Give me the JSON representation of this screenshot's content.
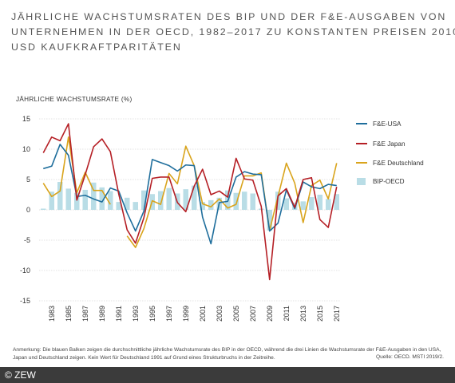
{
  "title_lines": [
    "JÄHRLICHE WACHSTUMSRATEN DES BIP UND DER F&E-AUSGABEN VON",
    "UNTERNEHMEN IN DER OECD, 1982–2017 ZU KONSTANTEN PREISEN 2010,",
    "USD KAUFKRAFTPARITÄTEN"
  ],
  "y_axis_label": "JÄHRLICHE WACHSTUMSRATE (%)",
  "note": "Anmerkung: Die blauen Balken zeigen die durchschnittliche jährliche Wachstumsrate des BIP in der OECD, während die drei Linien die Wachstumsrate der F&E-Ausgaben in den USA, Japan und Deutschland zeigen. Kein Wert für Deutschland 1991 auf Grund eines Strukturbruchs in der Zeitreihe.",
  "source": "Quelle: OECD. MSTI 2019/2.",
  "footer": "© ZEW",
  "colors": {
    "usa": "#1f6e9c",
    "japan": "#b51f25",
    "germany": "#d9a41c",
    "gdp": "#b9dde6",
    "grid": "#c8c8c8"
  },
  "chart_data": {
    "type": "line",
    "x": [
      1982,
      1983,
      1984,
      1985,
      1986,
      1987,
      1988,
      1989,
      1990,
      1991,
      1992,
      1993,
      1994,
      1995,
      1996,
      1997,
      1998,
      1999,
      2000,
      2001,
      2002,
      2003,
      2004,
      2005,
      2006,
      2007,
      2008,
      2009,
      2010,
      2011,
      2012,
      2013,
      2014,
      2015,
      2016,
      2017
    ],
    "x_tick_labels": [
      "1983",
      "1985",
      "1987",
      "1989",
      "1991",
      "1993",
      "1995",
      "1997",
      "1999",
      "2001",
      "2003",
      "2005",
      "2007",
      "2009",
      "2011",
      "2013",
      "2015",
      "2017"
    ],
    "ylim": [
      -15,
      15
    ],
    "y_ticks": [
      15,
      10,
      5,
      0,
      -5,
      -10,
      -15
    ],
    "legend_position": "right",
    "bars": {
      "name": "BIP-OECD",
      "values": [
        0.2,
        3.0,
        4.6,
        3.5,
        2.8,
        3.3,
        4.5,
        3.7,
        3.1,
        1.3,
        2.0,
        1.3,
        3.2,
        2.6,
        3.1,
        3.6,
        2.7,
        3.4,
        4.0,
        1.3,
        1.6,
        2.0,
        3.2,
        2.8,
        3.0,
        2.7,
        0.2,
        -3.4,
        3.0,
        1.9,
        1.2,
        1.4,
        2.1,
        2.5,
        1.8,
        2.6
      ]
    },
    "series": [
      {
        "name": "F&E-USA",
        "key": "usa",
        "values": [
          6.8,
          7.2,
          10.8,
          9.0,
          2.2,
          2.4,
          1.8,
          1.3,
          3.6,
          3.1,
          -0.5,
          -3.5,
          -0.2,
          8.3,
          7.8,
          7.3,
          6.4,
          7.4,
          7.3,
          -1.2,
          -5.6,
          1.2,
          1.4,
          5.4,
          6.3,
          5.9,
          5.8,
          -3.5,
          -2.2,
          3.3,
          0.2,
          4.6,
          3.8,
          3.5,
          4.2,
          4.0
        ]
      },
      {
        "name": "F&E Japan",
        "key": "japan",
        "values": [
          9.4,
          12.0,
          11.4,
          14.2,
          1.6,
          5.8,
          10.4,
          11.7,
          9.6,
          2.6,
          -3.3,
          -5.5,
          -1.3,
          5.2,
          5.4,
          5.4,
          1.2,
          -0.3,
          3.9,
          6.7,
          2.5,
          3.1,
          2.1,
          8.5,
          5.1,
          4.9,
          0.6,
          -11.5,
          2.3,
          3.5,
          0.4,
          5.0,
          5.3,
          -1.6,
          -2.9,
          3.8
        ]
      },
      {
        "name": "F&E Deutschland",
        "key": "germany",
        "values": [
          4.4,
          2.2,
          3.1,
          12.0,
          2.8,
          6.2,
          3.2,
          3.2,
          0.9,
          null,
          -4.3,
          -6.2,
          -3.1,
          1.5,
          0.9,
          6.0,
          4.3,
          10.5,
          7.3,
          1.0,
          0.5,
          1.8,
          0.3,
          0.9,
          5.6,
          5.6,
          6.1,
          -3.4,
          2.2,
          7.7,
          4.4,
          -2.1,
          4.0,
          4.9,
          1.8,
          7.7
        ]
      }
    ]
  }
}
